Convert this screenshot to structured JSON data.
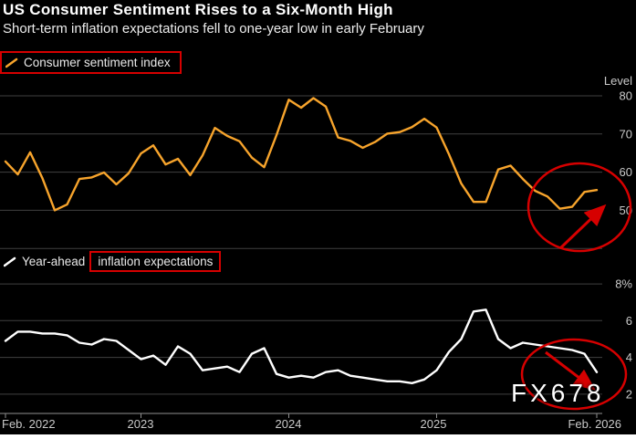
{
  "title": "US Consumer Sentiment Rises to a Six-Month High",
  "subtitle": "Short-term inflation expectations fell to one-year low in early February",
  "watermark": "FX678",
  "colors": {
    "background": "#000000",
    "sentiment_line": "#f7a42c",
    "inflation_line": "#ffffff",
    "annotation_red": "#d60000",
    "grid": "#404040",
    "axis": "#8f8f8f",
    "tick": "#c9c9c9"
  },
  "legend_sentiment": {
    "label": "Consumer sentiment index"
  },
  "legend_inflation": {
    "prefix": "Year-ahead",
    "boxed": "inflation expectations"
  },
  "x_axis": {
    "labels": [
      "Feb. 2022",
      "2023",
      "2024",
      "2025",
      "Feb. 2026"
    ]
  },
  "chart_data": [
    {
      "type": "line",
      "name": "consumer-sentiment-index",
      "title": "Consumer sentiment index",
      "ylabel": "Level",
      "x_start": "Feb. 2022",
      "x_end": "Feb. 2026",
      "x_frequency": "monthly",
      "ylim": [
        39.8,
        82.4
      ],
      "yticks": [
        80,
        70,
        60,
        50
      ],
      "ytick_labels": [
        "80",
        "70",
        "60",
        "50"
      ],
      "gridlines": [
        80,
        70,
        60,
        50,
        40
      ],
      "legend_position": "top-left",
      "grid": true,
      "color": "#f7a42c",
      "show_x_axis": false,
      "xtick_indices": [],
      "values": [
        62.8,
        59.4,
        65.2,
        58.4,
        50.0,
        51.5,
        58.2,
        58.6,
        59.9,
        56.8,
        59.7,
        64.9,
        67.0,
        62.0,
        63.5,
        59.2,
        64.4,
        71.6,
        69.5,
        68.1,
        63.8,
        61.3,
        69.7,
        79.0,
        76.9,
        79.4,
        77.2,
        69.1,
        68.2,
        66.4,
        67.9,
        70.1,
        70.5,
        71.8,
        74.0,
        71.7,
        64.7,
        57.0,
        52.2,
        52.2,
        60.7,
        61.7,
        58.2,
        55.1,
        53.6,
        50.4,
        50.9,
        54.8,
        55.3
      ]
    },
    {
      "type": "line",
      "name": "year-ahead-inflation-expectations",
      "title": "Year-ahead inflation expectations",
      "ylabel": "",
      "x_start": "Feb. 2022",
      "x_end": "Feb. 2026",
      "x_frequency": "monthly",
      "ylim": [
        0.95,
        8.55
      ],
      "yticks": [
        8,
        6,
        4,
        2
      ],
      "ytick_labels": [
        "8%",
        "6",
        "4",
        "2"
      ],
      "gridlines": [
        8,
        6,
        4,
        2
      ],
      "legend_position": "top-left",
      "grid": true,
      "color": "#ffffff",
      "show_x_axis": true,
      "xtick_indices": [
        0,
        11,
        23,
        35,
        48
      ],
      "values": [
        4.9,
        5.4,
        5.4,
        5.3,
        5.3,
        5.2,
        4.8,
        4.7,
        5.0,
        4.9,
        4.4,
        3.9,
        4.1,
        3.6,
        4.6,
        4.2,
        3.3,
        3.4,
        3.5,
        3.2,
        4.2,
        4.5,
        3.1,
        2.9,
        3.0,
        2.9,
        3.2,
        3.3,
        3.0,
        2.9,
        2.8,
        2.7,
        2.7,
        2.6,
        2.8,
        3.3,
        4.3,
        5.0,
        6.5,
        6.6,
        5.0,
        4.5,
        4.8,
        4.7,
        4.6,
        4.5,
        4.4,
        4.2,
        3.2
      ]
    }
  ]
}
